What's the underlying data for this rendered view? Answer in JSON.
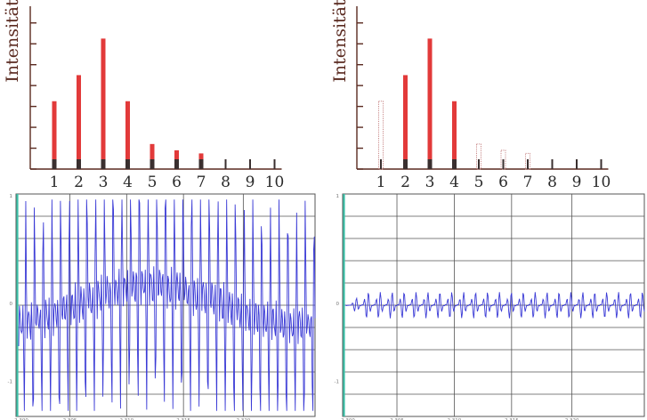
{
  "colors": {
    "bar": "#e23a3a",
    "bar_stub": "#3a2f2f",
    "bar_outline": "#c98a8a",
    "axis": "#5a2a20",
    "wave": "#3b3bd6",
    "grid": "#555555",
    "panel_border": "#555555",
    "panel_left_edge": "#3cc0a8",
    "panel_bg": "#ffffff"
  },
  "chart_data": [
    {
      "type": "bar",
      "ylabel": "Intensität",
      "xlabel": "",
      "categories": [
        "1",
        "2",
        "3",
        "4",
        "5",
        "6",
        "7",
        "8",
        "9",
        "10"
      ],
      "values": [
        3.25,
        4.5,
        6.25,
        3.25,
        1.2,
        0.9,
        0.75,
        0,
        0,
        0
      ],
      "ylim": [
        0,
        7.8
      ],
      "y_ticks": [
        0,
        1,
        2,
        3,
        4,
        5,
        6,
        7
      ],
      "grid": false,
      "legend": "none"
    },
    {
      "type": "bar",
      "ylabel": "Intensität",
      "xlabel": "",
      "categories": [
        "1",
        "2",
        "3",
        "4",
        "5",
        "6",
        "7",
        "8",
        "9",
        "10"
      ],
      "values": [
        3.25,
        4.5,
        6.25,
        3.25,
        1.2,
        0.9,
        0.75,
        0,
        0,
        0
      ],
      "filled": [
        false,
        true,
        true,
        true,
        false,
        false,
        false,
        false,
        false,
        false
      ],
      "ylim": [
        0,
        7.8
      ],
      "y_ticks": [
        0,
        1,
        2,
        3,
        4,
        5,
        6,
        7
      ],
      "grid": false,
      "legend": "none"
    },
    {
      "type": "line",
      "title": "",
      "x_ticks": [
        "2.300",
        "2.305",
        "2.310",
        "2.315",
        "2.320"
      ],
      "y_ticks": [
        "1",
        "0",
        "-1"
      ],
      "xlim": [
        2.3,
        2.3235
      ],
      "ylim": [
        -1.4,
        1.4
      ],
      "grid": true
    },
    {
      "type": "line",
      "title": "",
      "x_ticks": [
        "2.300",
        "2.305",
        "2.310",
        "2.315",
        "2.320"
      ],
      "y_ticks": [
        "1",
        "0",
        "-1"
      ],
      "xlim": [
        2.3,
        2.3235
      ],
      "ylim": [
        -1.4,
        1.4
      ],
      "grid": true
    }
  ]
}
